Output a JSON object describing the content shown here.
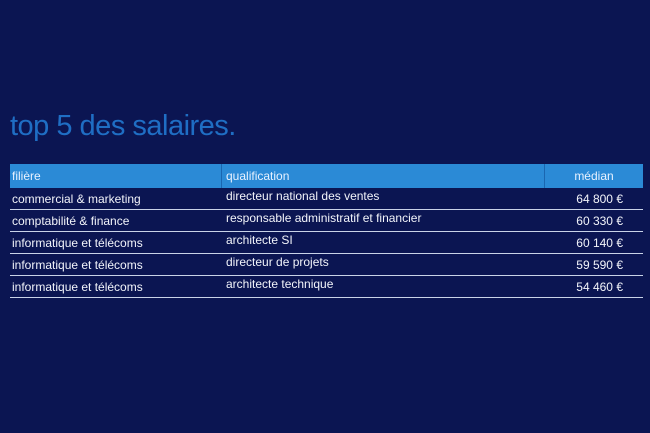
{
  "title": "top 5 des salaires.",
  "table": {
    "headers": [
      "filière",
      "qualification",
      "médian"
    ],
    "rows": [
      [
        "commercial & marketing",
        "directeur national des ventes",
        "64 800 €"
      ],
      [
        "comptabilité & finance",
        "responsable administratif et financier",
        "60 330 €"
      ],
      [
        "informatique et télécoms",
        "architecte SI",
        "60 140 €"
      ],
      [
        "informatique et télécoms",
        "directeur de projets",
        "59 590 €"
      ],
      [
        "informatique et télécoms",
        "architecte technique",
        "54 460 €"
      ]
    ]
  },
  "colors": {
    "background": "#0b1552",
    "title": "#1f6ec4",
    "header": "#2b8ad6"
  }
}
